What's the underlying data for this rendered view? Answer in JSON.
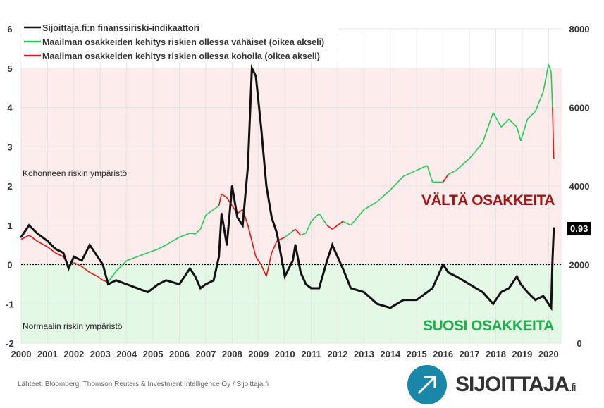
{
  "chart_data": {
    "type": "line",
    "xlim": [
      2000,
      2020.5
    ],
    "ylim_left": [
      -2,
      6
    ],
    "ylim_right": [
      0,
      8000
    ],
    "left_ticks": [
      "6",
      "5",
      "4",
      "3",
      "2",
      "1",
      "0",
      "-1",
      "-2"
    ],
    "right_ticks": [
      "8000",
      "6000",
      "4000",
      "2000",
      "0"
    ],
    "x_ticks": [
      "2000",
      "2001",
      "2002",
      "2003",
      "2004",
      "2005",
      "2006",
      "2007",
      "2008",
      "2009",
      "2010",
      "2011",
      "2012",
      "2013",
      "2014",
      "2015",
      "2016",
      "2017",
      "2018",
      "2019",
      "2020"
    ],
    "legend": [
      "Sijoittaja.fi:n finanssiriski-indikaattori",
      "Maailman osakkeiden kehitys riskien ollessa vähäiset (oikea akseli)",
      "Maailman osakkeiden kehitys riskien ollessa koholla (oikea akseli)"
    ],
    "legend_placement": "top-left",
    "colors": {
      "risk": "#111111",
      "low": "#22cc55",
      "high": "#ee1111",
      "high_zone": "#fdecec",
      "low_zone": "#e3f9e6"
    },
    "risk_threshold": 0,
    "x": [
      2000,
      2000.3,
      2000.6,
      2001,
      2001.3,
      2001.6,
      2001.8,
      2002,
      2002.3,
      2002.6,
      2002.9,
      2003.1,
      2003.3,
      2003.6,
      2004,
      2004.4,
      2004.8,
      2005.2,
      2005.5,
      2006,
      2006.4,
      2006.6,
      2006.8,
      2007,
      2007.3,
      2007.5,
      2007.6,
      2007.8,
      2008,
      2008.2,
      2008.4,
      2008.6,
      2008.75,
      2008.9,
      2009.1,
      2009.3,
      2009.5,
      2009.7,
      2010,
      2010.3,
      2010.4,
      2010.6,
      2010.8,
      2011,
      2011.3,
      2011.6,
      2011.8,
      2012,
      2012.2,
      2012.5,
      2013,
      2013.5,
      2014,
      2014.5,
      2015,
      2015.4,
      2015.6,
      2016,
      2016.2,
      2016.5,
      2017,
      2017.5,
      2017.9,
      2018.2,
      2018.5,
      2018.8,
      2018.95,
      2019.2,
      2019.5,
      2019.8,
      2020,
      2020.1,
      2020.15,
      2020.2
    ],
    "risk": [
      0.7,
      1.0,
      0.8,
      0.6,
      0.4,
      0.3,
      -0.1,
      0.2,
      0.1,
      0.5,
      0.2,
      0.0,
      -0.5,
      -0.4,
      -0.5,
      -0.6,
      -0.7,
      -0.5,
      -0.4,
      -0.5,
      -0.1,
      -0.3,
      -0.6,
      -0.5,
      -0.4,
      0.2,
      1.3,
      0.5,
      2.0,
      1.2,
      1.0,
      2.5,
      5.0,
      4.8,
      3.5,
      2.0,
      1.2,
      0.8,
      -0.3,
      0.1,
      0.5,
      -0.2,
      -0.5,
      -0.6,
      -0.6,
      0.1,
      0.5,
      0.2,
      -0.1,
      -0.6,
      -0.7,
      -1.0,
      -1.1,
      -0.9,
      -0.9,
      -0.7,
      -0.6,
      0.0,
      -0.2,
      -0.3,
      -0.5,
      -0.7,
      -1.0,
      -0.7,
      -0.6,
      -0.3,
      -0.5,
      -0.7,
      -0.9,
      -0.8,
      -1.0,
      -1.1,
      0.1,
      0.93
    ],
    "stocks": [
      2640,
      2750,
      2600,
      2450,
      2300,
      2200,
      2000,
      2050,
      1950,
      1800,
      1700,
      1600,
      1560,
      1830,
      2100,
      2200,
      2300,
      2400,
      2500,
      2700,
      2800,
      2780,
      2900,
      3260,
      3400,
      3500,
      3800,
      3700,
      3500,
      3300,
      3400,
      3000,
      2600,
      2200,
      2000,
      1700,
      2300,
      2600,
      2700,
      2850,
      2900,
      2750,
      2800,
      3100,
      3300,
      3000,
      2900,
      3000,
      3100,
      3000,
      3400,
      3600,
      3900,
      4250,
      4400,
      4520,
      4100,
      4100,
      4300,
      4400,
      4700,
      5100,
      5870,
      5500,
      5700,
      5500,
      5150,
      5700,
      5900,
      6400,
      7100,
      6900,
      6000,
      4700
    ],
    "annotations": {
      "high_zone": "Kohonneen riskin ympäristö",
      "low_zone": "Normaalin riskin ympäristö",
      "avoid": "VÄLTÄ OSAKKEITA",
      "favor": "SUOSI OSAKKEITA",
      "last_value": "0,93"
    }
  },
  "footer": {
    "source": "Lähteet: Bloomberg, Thomson Reuters & Investment Intelligence Oy / Sijoittaja.fi",
    "logo_main": "SIJOITTAJA",
    "logo_suffix": ".fi"
  }
}
